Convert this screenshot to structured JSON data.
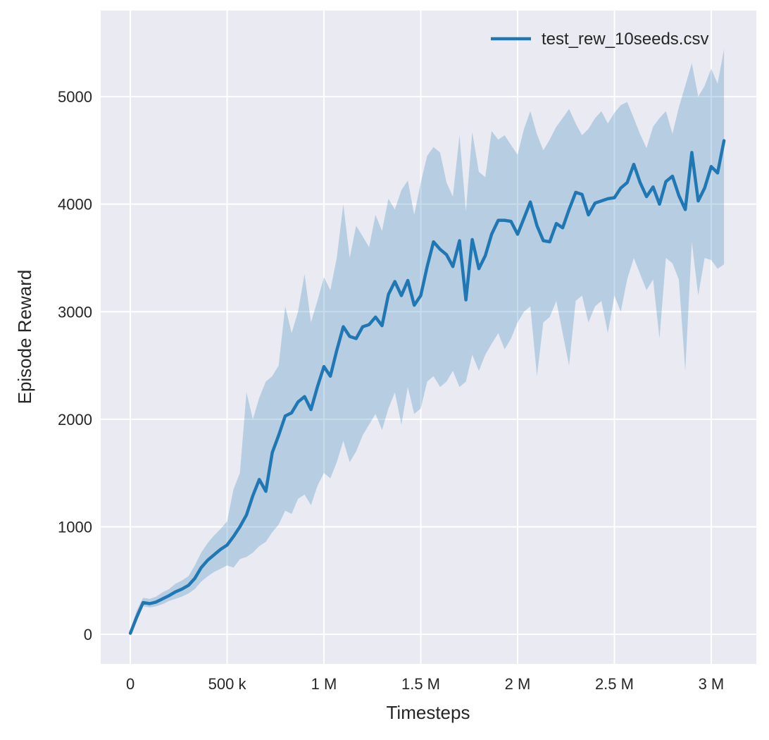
{
  "figure": {
    "text_color": "#262626",
    "background_color": "#ffffff"
  },
  "chart_data": {
    "type": "line",
    "title": "",
    "xlabel": "Timesteps",
    "ylabel": "Episode Reward",
    "grid": true,
    "legend_position": "upper right",
    "legend": [
      {
        "label": "test_rew_10seeds.csv",
        "color": "#1f77b4"
      }
    ],
    "plot_background": "#eaeaf2",
    "grid_color": "#ffffff",
    "line_color": "#1f77b4",
    "band_color": "#1f77b4",
    "band_opacity": 0.25,
    "xlim": [
      -153000,
      3233000
    ],
    "ylim": [
      -275,
      5800
    ],
    "x_ticks": [
      {
        "value": 0,
        "label": "0"
      },
      {
        "value": 500000,
        "label": "500 k"
      },
      {
        "value": 1000000,
        "label": "1 M"
      },
      {
        "value": 1500000,
        "label": "1.5 M"
      },
      {
        "value": 2000000,
        "label": "2 M"
      },
      {
        "value": 2500000,
        "label": "2.5 M"
      },
      {
        "value": 3000000,
        "label": "3 M"
      }
    ],
    "y_ticks": [
      {
        "value": 0,
        "label": "0"
      },
      {
        "value": 1000,
        "label": "1000"
      },
      {
        "value": 2000,
        "label": "2000"
      },
      {
        "value": 3000,
        "label": "3000"
      },
      {
        "value": 4000,
        "label": "4000"
      },
      {
        "value": 5000,
        "label": "5000"
      }
    ],
    "series": [
      {
        "name": "test_rew_10seeds.csv",
        "x": [
          0,
          33000,
          66000,
          100000,
          133000,
          166000,
          200000,
          233000,
          266000,
          300000,
          333000,
          366000,
          400000,
          433000,
          466000,
          500000,
          533000,
          566000,
          600000,
          633000,
          666000,
          700000,
          733000,
          766000,
          800000,
          833000,
          866000,
          900000,
          933000,
          966000,
          1000000,
          1033000,
          1066000,
          1100000,
          1133000,
          1166000,
          1200000,
          1233000,
          1266000,
          1300000,
          1333000,
          1366000,
          1400000,
          1433000,
          1466000,
          1500000,
          1533000,
          1566000,
          1600000,
          1633000,
          1666000,
          1700000,
          1733000,
          1766000,
          1800000,
          1833000,
          1866000,
          1900000,
          1933000,
          1966000,
          2000000,
          2033000,
          2066000,
          2100000,
          2133000,
          2166000,
          2200000,
          2233000,
          2266000,
          2300000,
          2333000,
          2366000,
          2400000,
          2433000,
          2466000,
          2500000,
          2533000,
          2566000,
          2600000,
          2633000,
          2666000,
          2700000,
          2733000,
          2766000,
          2800000,
          2833000,
          2866000,
          2900000,
          2933000,
          2966000,
          3000000,
          3033000,
          3066000
        ],
        "mean": [
          10,
          160,
          295,
          285,
          300,
          330,
          360,
          395,
          420,
          455,
          520,
          620,
          690,
          740,
          790,
          830,
          910,
          1000,
          1110,
          1290,
          1440,
          1330,
          1690,
          1850,
          2030,
          2060,
          2160,
          2210,
          2090,
          2300,
          2490,
          2400,
          2640,
          2860,
          2770,
          2750,
          2860,
          2880,
          2950,
          2870,
          3160,
          3280,
          3150,
          3290,
          3060,
          3150,
          3420,
          3650,
          3580,
          3530,
          3420,
          3660,
          3110,
          3670,
          3400,
          3520,
          3720,
          3850,
          3850,
          3840,
          3720,
          3870,
          4020,
          3800,
          3660,
          3650,
          3820,
          3780,
          3950,
          4110,
          4090,
          3900,
          4010,
          4030,
          4050,
          4060,
          4150,
          4200,
          4370,
          4200,
          4070,
          4160,
          4000,
          4210,
          4260,
          4080,
          3950,
          4480,
          4030,
          4150,
          4350,
          4290,
          4590
        ],
        "band_lower": [
          0,
          120,
          260,
          250,
          260,
          280,
          310,
          330,
          350,
          380,
          420,
          490,
          540,
          580,
          610,
          640,
          620,
          700,
          720,
          760,
          820,
          860,
          950,
          1020,
          1150,
          1120,
          1260,
          1300,
          1200,
          1380,
          1500,
          1450,
          1600,
          1800,
          1600,
          1700,
          1850,
          1950,
          2050,
          1900,
          2100,
          2250,
          1950,
          2300,
          2050,
          2100,
          2350,
          2400,
          2300,
          2350,
          2450,
          2300,
          2350,
          2600,
          2450,
          2600,
          2700,
          2800,
          2650,
          2750,
          2900,
          3000,
          3050,
          2400,
          2900,
          2950,
          3100,
          2800,
          2500,
          3100,
          3150,
          2900,
          3050,
          3100,
          2800,
          3150,
          3000,
          3300,
          3500,
          3350,
          3200,
          3300,
          2750,
          3500,
          3450,
          3300,
          2450,
          3650,
          3150,
          3500,
          3480,
          3400,
          3440
        ],
        "band_upper": [
          40,
          220,
          340,
          330,
          350,
          390,
          420,
          470,
          500,
          540,
          640,
          760,
          850,
          920,
          980,
          1050,
          1350,
          1500,
          2250,
          2000,
          2200,
          2350,
          2400,
          2500,
          3050,
          2800,
          3000,
          3350,
          2900,
          3100,
          3320,
          3200,
          3500,
          4000,
          3500,
          3800,
          3700,
          3600,
          3900,
          3750,
          4050,
          3950,
          4130,
          4220,
          3900,
          4200,
          4450,
          4530,
          4480,
          4200,
          4070,
          4640,
          3930,
          4670,
          4300,
          4250,
          4680,
          4600,
          4640,
          4550,
          4460,
          4700,
          4865,
          4650,
          4500,
          4600,
          4720,
          4800,
          4885,
          4750,
          4640,
          4700,
          4800,
          4865,
          4750,
          4850,
          4920,
          4950,
          4800,
          4650,
          4520,
          4720,
          4800,
          4865,
          4655,
          4900,
          5100,
          5310,
          5000,
          5100,
          5260,
          5120,
          5440
        ]
      }
    ]
  }
}
